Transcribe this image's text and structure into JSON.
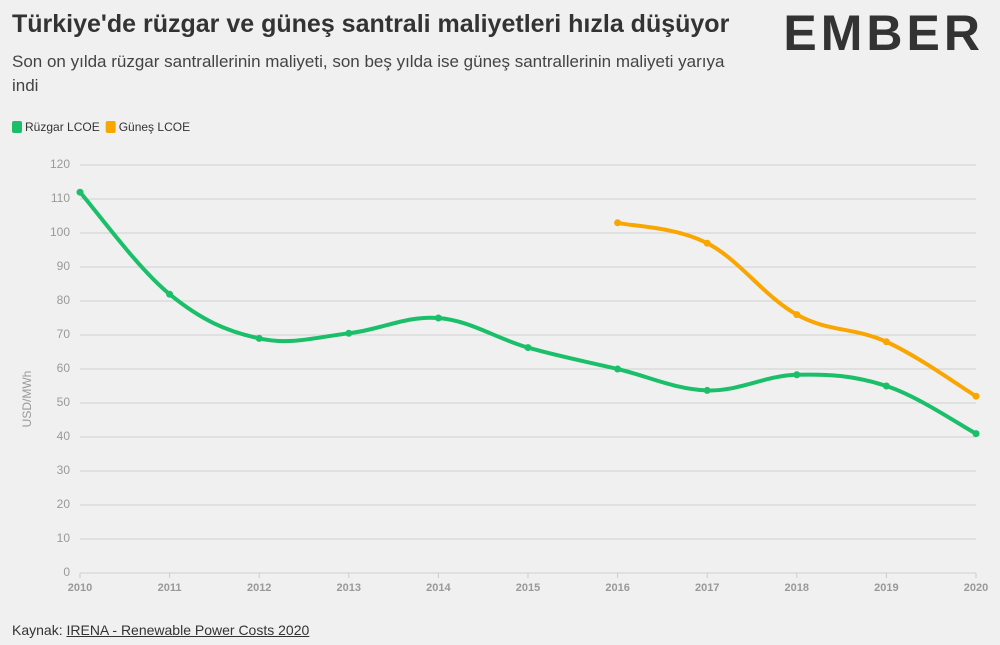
{
  "chart_data": {
    "type": "line",
    "title": "Türkiye'de rüzgar ve güneş santrali maliyetleri hızla düşüyor",
    "subtitle": "Son on yılda rüzgar santrallerinin maliyeti, son beş yılda ise güneş santrallerinin maliyeti yarıya indi",
    "logo": "EMBER",
    "y_label": "USD/MWh",
    "source_prefix": "Kaynak:",
    "source": "IRENA - Renewable Power Costs 2020",
    "x": [
      2010,
      2011,
      2012,
      2013,
      2014,
      2015,
      2016,
      2017,
      2018,
      2019,
      2020
    ],
    "xlim": [
      2010,
      2020
    ],
    "xticks": [
      2010,
      2011,
      2012,
      2013,
      2014,
      2015,
      2016,
      2017,
      2018,
      2019,
      2020
    ],
    "ylim": [
      0,
      120
    ],
    "yticks": [
      0,
      10,
      20,
      30,
      40,
      50,
      60,
      70,
      80,
      90,
      100,
      110,
      120
    ],
    "grid": true,
    "series": [
      {
        "name": "Rüzgar LCOE",
        "color": "#1bbf6a",
        "values": [
          112,
          82,
          69,
          70.5,
          75,
          66.3,
          60,
          53.7,
          58.3,
          55,
          41
        ]
      },
      {
        "name": "Güneş LCOE",
        "color": "#f9a602",
        "values": [
          null,
          null,
          null,
          null,
          null,
          null,
          103,
          97,
          76,
          68,
          52
        ]
      }
    ]
  }
}
